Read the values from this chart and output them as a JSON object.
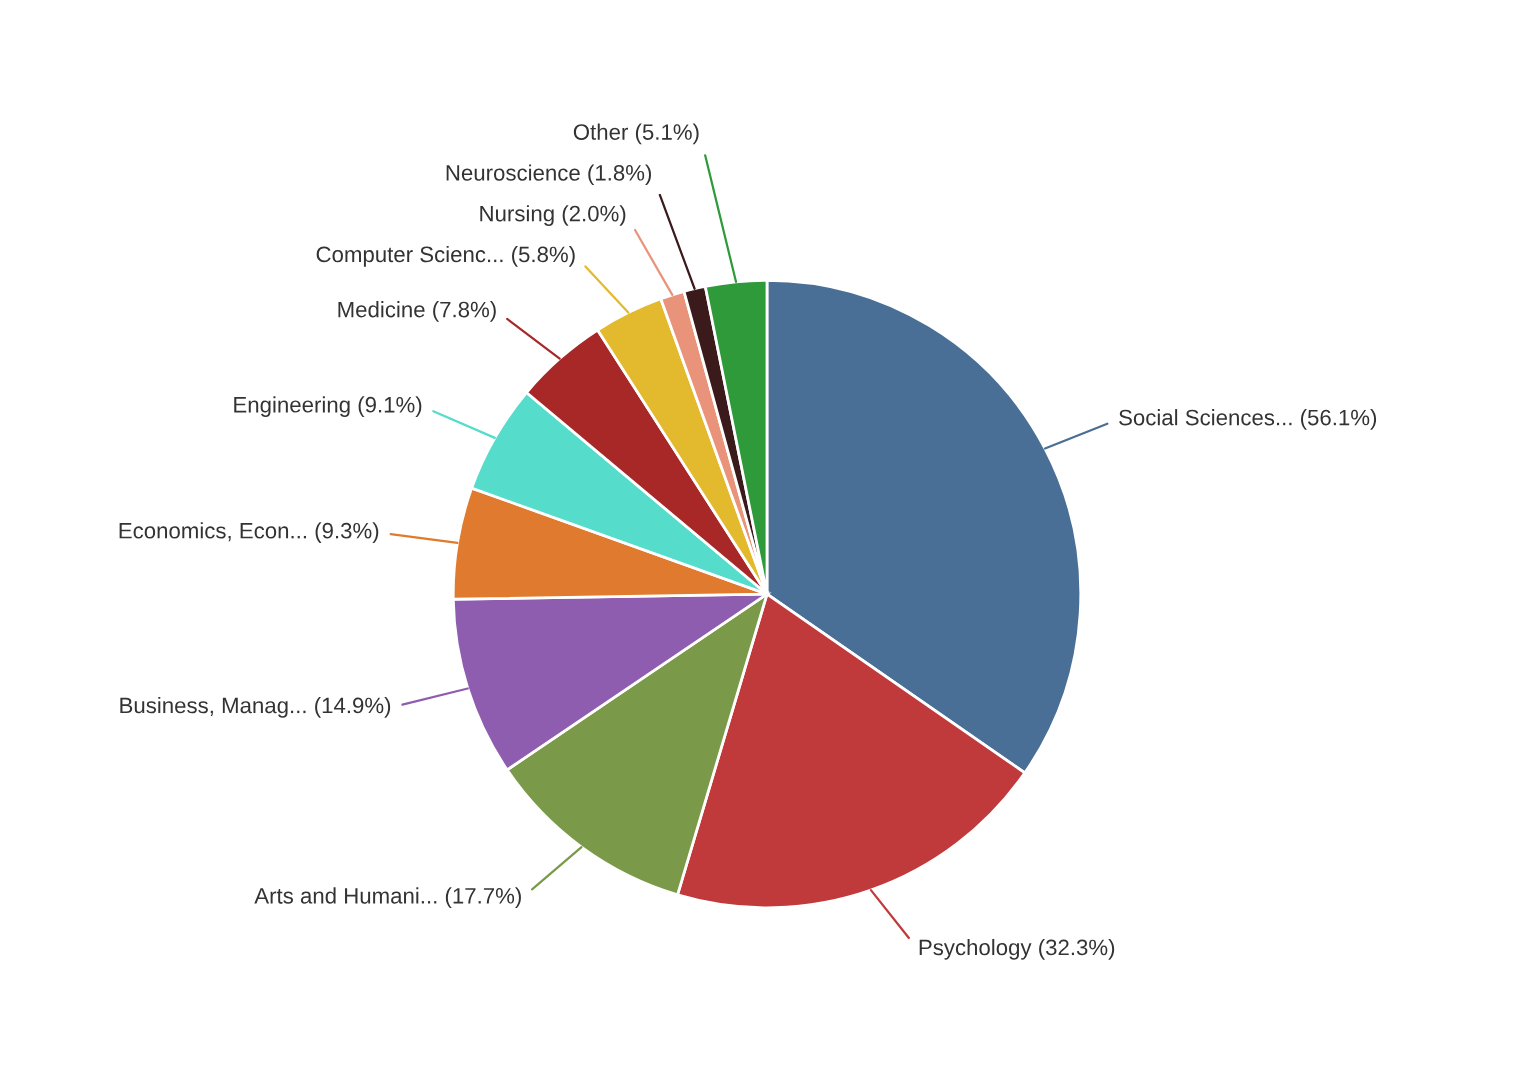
{
  "chart_data": {
    "type": "pie",
    "categories": [
      "Social Sciences...",
      "Psychology",
      "Arts and Humani...",
      "Business, Manag...",
      "Economics, Econ...",
      "Engineering",
      "Medicine",
      "Computer Scienc...",
      "Nursing",
      "Neuroscience",
      "Other"
    ],
    "values": [
      56.1,
      32.3,
      17.7,
      14.9,
      9.3,
      9.1,
      7.8,
      5.8,
      2.0,
      1.8,
      5.1
    ],
    "value_labels": [
      "(56.1%)",
      "(32.3%)",
      "(17.7%)",
      "(14.9%)",
      "(9.3%)",
      "(9.1%)",
      "(7.8%)",
      "(5.8%)",
      "(2.0%)",
      "(1.8%)",
      "(5.1%)"
    ],
    "colors": [
      "#4a6f96",
      "#c0393b",
      "#7a9a4a",
      "#8e5db0",
      "#e07a2e",
      "#55dccb",
      "#a82828",
      "#e3b92e",
      "#e8937a",
      "#3a1a1a",
      "#2e9a3a"
    ],
    "legend": false
  }
}
